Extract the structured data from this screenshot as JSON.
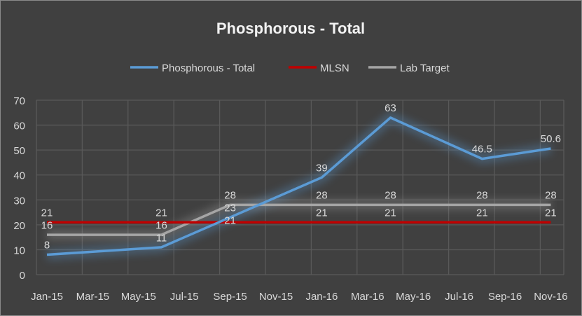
{
  "chart_data": {
    "type": "line",
    "title": "Phosphorous - Total",
    "xlabel": "",
    "ylabel": "",
    "ylim": [
      0,
      70
    ],
    "yticks": [
      0,
      10,
      20,
      30,
      40,
      50,
      60,
      70
    ],
    "xticks": [
      "Jan-15",
      "Mar-15",
      "May-15",
      "Jul-15",
      "Sep-15",
      "Nov-15",
      "Jan-16",
      "Mar-16",
      "May-16",
      "Jul-16",
      "Sep-16",
      "Nov-16"
    ],
    "grid": true,
    "legend_position": "top",
    "x": [
      "Jan-15",
      "Jun-15",
      "Sep-15",
      "Jan-16",
      "Apr-16",
      "Aug-16",
      "Nov-16"
    ],
    "series": [
      {
        "name": "Phosphorous - Total",
        "color": "#5b9bd5",
        "values": [
          8,
          11,
          23,
          39,
          63,
          46.5,
          50.6
        ],
        "labels": [
          "8",
          "11",
          "23",
          "39",
          "63",
          "46.5",
          "50.6"
        ]
      },
      {
        "name": "MLSN",
        "color": "#c00000",
        "values": [
          21,
          21,
          21,
          21,
          21,
          21,
          21
        ],
        "labels": [
          "21",
          "21",
          "21",
          "21",
          "21",
          "21",
          "21"
        ]
      },
      {
        "name": "Lab Target",
        "color": "#a5a5a5",
        "values": [
          16,
          16,
          28,
          28,
          28,
          28,
          28
        ],
        "labels": [
          "16",
          "16",
          "28",
          "28",
          "28",
          "28",
          "28"
        ]
      }
    ]
  }
}
